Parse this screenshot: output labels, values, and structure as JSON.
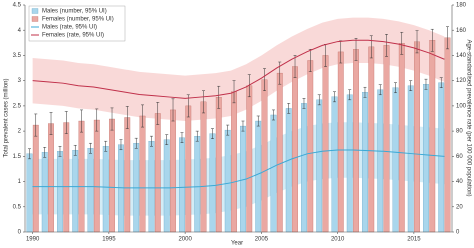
{
  "chart_data": {
    "type": "bar-line",
    "x_label": "Year",
    "y_label": "Total prevalent cases (million)",
    "y2_label": "Age-standardised prevalence rate (per 100 000 population)",
    "x": [
      1990,
      1991,
      1992,
      1993,
      1994,
      1995,
      1996,
      1997,
      1998,
      1999,
      2000,
      2001,
      2002,
      2003,
      2004,
      2005,
      2006,
      2007,
      2008,
      2009,
      2010,
      2011,
      2012,
      2013,
      2014,
      2015,
      2016,
      2017
    ],
    "xlim": [
      1989.5,
      2017.5
    ],
    "xticks": [
      1990,
      1995,
      2000,
      2005,
      2010,
      2015
    ],
    "ylim": [
      0,
      4.5
    ],
    "yticks": [
      0,
      0.5,
      1,
      1.5,
      2,
      2.5,
      3,
      3.5,
      4,
      4.5
    ],
    "y2lim": [
      0,
      180
    ],
    "y2ticks": [
      0,
      20,
      40,
      60,
      80,
      100,
      120,
      140,
      160,
      180
    ],
    "legend": "upper left",
    "series": [
      {
        "name": "Males (number, 95% UI)",
        "kind": "bar",
        "color": "#a9d6ec",
        "edge": "#5a9ec0",
        "error": 0.1,
        "values": [
          1.55,
          1.58,
          1.6,
          1.62,
          1.66,
          1.7,
          1.73,
          1.76,
          1.8,
          1.83,
          1.87,
          1.9,
          1.95,
          2.02,
          2.1,
          2.2,
          2.32,
          2.45,
          2.55,
          2.62,
          2.68,
          2.72,
          2.77,
          2.82,
          2.86,
          2.9,
          2.93,
          2.96
        ]
      },
      {
        "name": "Females (number, 95% UI)",
        "kind": "bar",
        "color": "#eaa8a2",
        "edge": "#b86058",
        "error": 0.22,
        "values": [
          2.12,
          2.15,
          2.17,
          2.2,
          2.22,
          2.24,
          2.27,
          2.3,
          2.35,
          2.42,
          2.5,
          2.58,
          2.67,
          2.78,
          2.9,
          3.02,
          3.15,
          3.28,
          3.4,
          3.5,
          3.57,
          3.62,
          3.67,
          3.7,
          3.74,
          3.77,
          3.8,
          3.85
        ]
      },
      {
        "name": "Males (rate, 95% UI)",
        "kind": "line",
        "axis": "y2",
        "color": "#3aa9d6",
        "band_color": "#c4e5f3",
        "values": [
          36,
          36,
          36,
          36,
          36,
          35.5,
          35,
          35,
          35,
          35,
          35.5,
          36,
          37,
          39,
          42,
          47,
          53,
          58,
          62,
          64,
          65,
          65,
          64.5,
          64,
          63,
          62,
          61,
          60
        ],
        "lower": [
          14,
          14,
          14,
          14,
          14,
          13.5,
          13,
          13,
          13,
          13,
          13.5,
          14,
          15,
          17,
          20,
          25,
          31,
          36,
          40,
          42,
          43,
          43,
          42.5,
          42,
          41,
          40,
          39,
          38
        ],
        "upper": [
          58,
          58,
          58,
          58,
          58,
          57.5,
          57,
          57,
          57,
          57,
          57.5,
          58,
          59,
          61,
          64,
          69,
          75,
          80,
          84,
          86,
          87,
          87,
          86.5,
          86,
          85,
          84,
          83,
          82
        ]
      },
      {
        "name": "Females (rate, 95% UI)",
        "kind": "line",
        "axis": "y2",
        "color": "#c0304a",
        "band_color": "#f7cccb",
        "values": [
          120,
          119,
          118,
          116,
          115,
          113,
          111,
          109,
          108,
          107,
          106,
          107,
          108,
          110,
          115,
          122,
          130,
          137,
          143,
          148,
          151,
          152,
          152,
          151,
          149,
          146,
          142,
          137
        ],
        "lower": [
          102,
          101,
          100,
          98,
          97,
          95,
          93,
          91,
          90,
          89,
          88,
          89,
          90,
          92,
          97,
          104,
          112,
          119,
          125,
          130,
          133,
          134,
          134,
          133,
          131,
          128,
          124,
          119
        ],
        "upper": [
          138,
          137,
          136,
          134,
          133,
          131,
          129,
          127,
          126,
          125,
          124,
          125,
          126,
          128,
          133,
          140,
          148,
          155,
          161,
          166,
          169,
          170,
          170,
          169,
          167,
          164,
          160,
          155
        ]
      }
    ]
  }
}
